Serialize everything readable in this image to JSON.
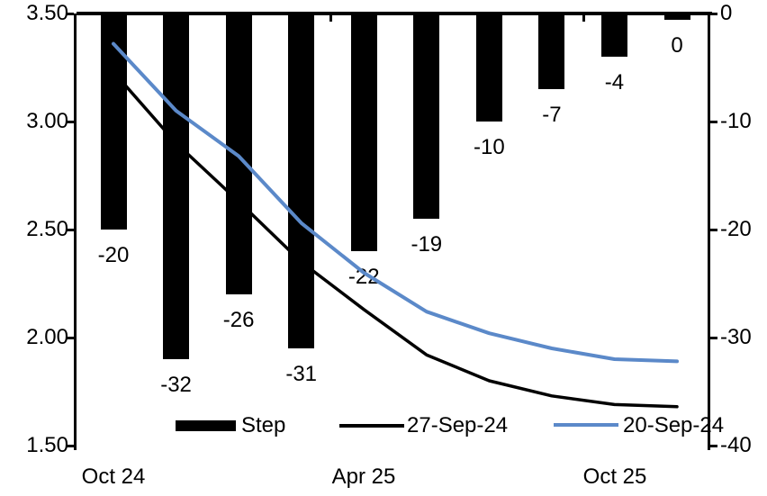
{
  "chart_data": {
    "type": "combo-bar-line",
    "n_categories": 10,
    "x_tick_labels": [
      {
        "label": "Oct 24",
        "category_index": 0
      },
      {
        "label": "Apr 25",
        "category_index": 4
      },
      {
        "label": "Oct 25",
        "category_index": 8
      }
    ],
    "bar_series": {
      "name": "Step",
      "axis": "right",
      "color": "#000000",
      "values": [
        -20,
        -32,
        -26,
        -31,
        -22,
        -19,
        -10,
        -7,
        -4,
        0
      ],
      "labels": [
        "-20",
        "-32",
        "-26",
        "-31",
        "-22",
        "-19",
        "-10",
        "-7",
        "-4",
        "0"
      ]
    },
    "line_series": [
      {
        "name": "27-Sep-24",
        "axis": "left",
        "color": "#000000",
        "stroke_width": 3.5,
        "values": [
          3.23,
          2.9,
          2.63,
          2.35,
          2.13,
          1.92,
          1.8,
          1.73,
          1.69,
          1.68
        ]
      },
      {
        "name": "20-Sep-24",
        "axis": "left",
        "color": "#5B89C9",
        "stroke_width": 4,
        "values": [
          3.36,
          3.05,
          2.84,
          2.53,
          2.3,
          2.12,
          2.02,
          1.95,
          1.9,
          1.89
        ]
      }
    ],
    "left_axis": {
      "min": 1.5,
      "max": 3.5,
      "tick_labels": [
        "3.50",
        "3.00",
        "2.50",
        "2.00",
        "1.50"
      ]
    },
    "right_axis": {
      "min": -40,
      "max": 0,
      "tick_labels": [
        "0",
        "-10",
        "-20",
        "-30",
        "-40"
      ]
    },
    "legend": [
      {
        "label": "Step",
        "swatch": "bar",
        "color": "#000000"
      },
      {
        "label": "27-Sep-24",
        "swatch": "line",
        "color": "#000000"
      },
      {
        "label": "20-Sep-24",
        "swatch": "line",
        "color": "#5B89C9"
      }
    ],
    "grid": false,
    "legend_position": "bottom",
    "background": "#FFFFFF"
  }
}
